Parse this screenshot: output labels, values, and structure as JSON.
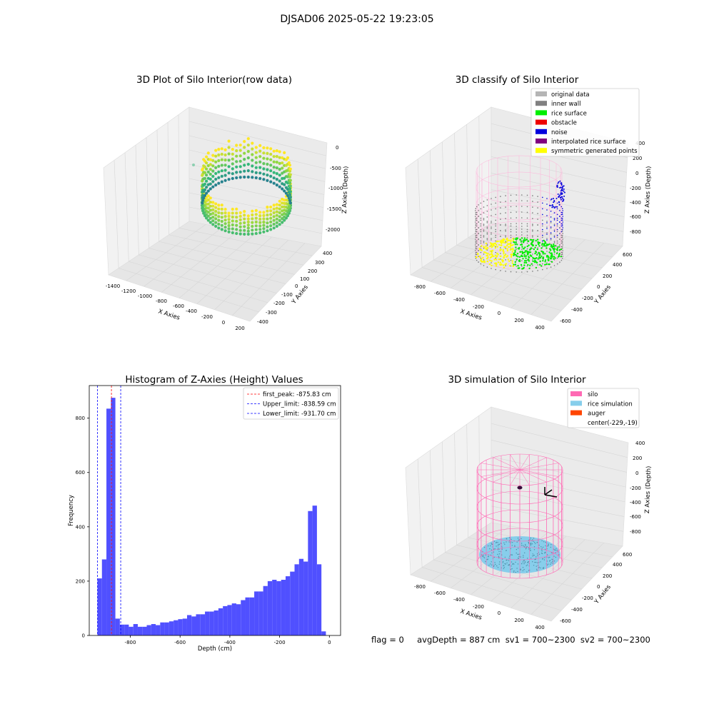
{
  "suptitle": "DJSAD06 2025-05-22 19:23:05",
  "panel_raw": {
    "title": "3D Plot of Silo Interior(row data)",
    "xlabel": "X Axies",
    "ylabel": "Y Axies",
    "zlabel": "Z Axies (Depth)",
    "x_ticks": [
      "-1400",
      "-1200",
      "-1000",
      "-800",
      "-600",
      "-400",
      "-200",
      "0",
      "200"
    ],
    "y_ticks": [
      "400",
      "300",
      "200",
      "100",
      "0",
      "-100",
      "-200",
      "-300",
      "-400"
    ],
    "z_ticks": [
      "0",
      "-500",
      "-1000",
      "-1500",
      "-2000"
    ]
  },
  "panel_classify": {
    "title": "3D classify of Silo Interior",
    "xlabel": "X Axies",
    "ylabel": "Y Axies",
    "zlabel": "Z Axies (Depth)",
    "x_ticks": [
      "-800",
      "-600",
      "-400",
      "-200",
      "0",
      "200",
      "400"
    ],
    "y_ticks": [
      "600",
      "400",
      "200",
      "0",
      "-200",
      "-400",
      "-600"
    ],
    "z_ticks": [
      "400",
      "200",
      "0",
      "-200",
      "-400",
      "-600",
      "-800"
    ],
    "legend": [
      {
        "label": "original data",
        "color": "#b5b5b5"
      },
      {
        "label": "inner wall",
        "color": "#808080"
      },
      {
        "label": "rice surface",
        "color": "#00ee00"
      },
      {
        "label": "obstacle",
        "color": "#ee0000"
      },
      {
        "label": "noise",
        "color": "#0000dd"
      },
      {
        "label": "interpolated rice surface",
        "color": "#800080"
      },
      {
        "label": "symmetric generated points",
        "color": "#ffff00"
      }
    ]
  },
  "panel_sim": {
    "title": "3D simulation of Silo Interior",
    "xlabel": "X Axies",
    "ylabel": "Y Axies",
    "zlabel": "Z Axies (Depth)",
    "x_ticks": [
      "-800",
      "-600",
      "-400",
      "-200",
      "0",
      "200",
      "400"
    ],
    "y_ticks": [
      "600",
      "400",
      "200",
      "0",
      "-200",
      "-400",
      "-600"
    ],
    "z_ticks": [
      "400",
      "200",
      "0",
      "-200",
      "-400",
      "-600",
      "-800"
    ],
    "legend": [
      {
        "label": "silo",
        "color": "#ff69b4"
      },
      {
        "label": "rice simulation",
        "color": "#87ceeb"
      },
      {
        "label": "auger",
        "color": "#ff4500"
      },
      {
        "label": "center(-229,-19)",
        "color": ""
      }
    ],
    "status": "flag = 0     avgDepth = 887 cm  sv1 = 700~2300  sv2 = 700~2300"
  },
  "chart_data": {
    "type": "bar",
    "title": "Histogram of Z-Axies (Height) Values",
    "xlabel": "Depth (cm)",
    "ylabel": "Frequency",
    "xlim": [
      -965,
      45
    ],
    "ylim": [
      0,
      920
    ],
    "x_ticks": [
      -800,
      -600,
      -400,
      -200,
      0
    ],
    "y_ticks": [
      0,
      200,
      400,
      600,
      800
    ],
    "bin_width": 18,
    "bin_start": -932,
    "color": "#5050ff",
    "values": [
      210,
      280,
      835,
      875,
      62,
      40,
      40,
      32,
      42,
      32,
      32,
      38,
      42,
      38,
      48,
      48,
      52,
      56,
      60,
      62,
      75,
      70,
      78,
      78,
      88,
      88,
      92,
      100,
      108,
      112,
      118,
      115,
      130,
      140,
      140,
      162,
      162,
      182,
      200,
      205,
      200,
      205,
      218,
      235,
      262,
      282,
      272,
      458,
      478,
      262,
      15
    ],
    "vlines": [
      {
        "label": "first_peak: -875.83 cm",
        "value": -875.83,
        "color": "#ff0000"
      },
      {
        "label": "Upper_limit: -838.59 cm",
        "value": -838.59,
        "color": "#0000ff"
      },
      {
        "label": "Lower_limit: -931.70 cm",
        "value": -931.7,
        "color": "#0000ff"
      }
    ]
  }
}
